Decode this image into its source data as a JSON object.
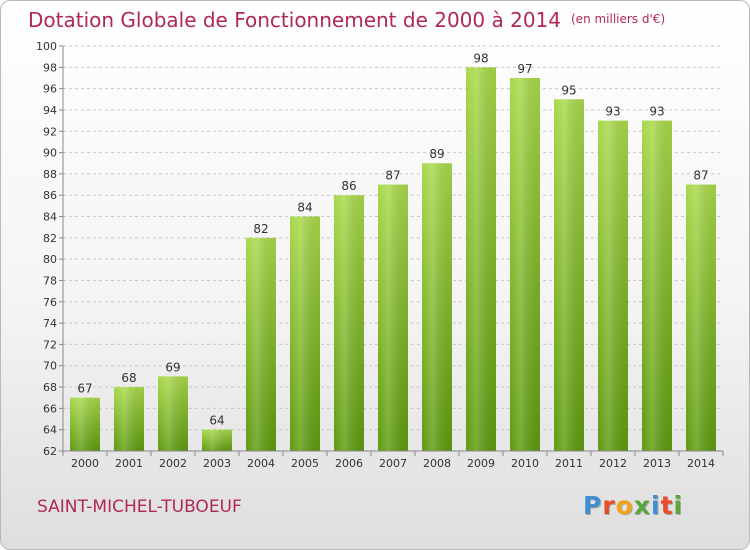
{
  "title": "Dotation Globale de Fonctionnement de 2000 à 2014",
  "subtitle": "(en milliers d'€)",
  "commune": "SAINT-MICHEL-TUBOEUF",
  "logo": {
    "text": "Proxiti",
    "letters": [
      {
        "char": "P",
        "color": "#3f8fd0"
      },
      {
        "char": "r",
        "color": "#e84b2a"
      },
      {
        "char": "o",
        "color": "#f2a21b"
      },
      {
        "char": "x",
        "color": "#5aa63c"
      },
      {
        "char": "i",
        "color": "#3f8fd0"
      },
      {
        "char": "t",
        "color": "#e84b2a"
      },
      {
        "char": "i",
        "color": "#5aa63c"
      }
    ]
  },
  "colors": {
    "accent": "#b0285a",
    "bar_light": "#a8d84a",
    "bar_dark": "#5e9a0f",
    "grid": "#c8c8c8",
    "axis_text": "#333333"
  },
  "chart_data": {
    "type": "bar",
    "title": "Dotation Globale de Fonctionnement de 2000 à 2014",
    "subtitle": "(en milliers d'€)",
    "categories": [
      "2000",
      "2001",
      "2002",
      "2003",
      "2004",
      "2005",
      "2006",
      "2007",
      "2008",
      "2009",
      "2010",
      "2011",
      "2012",
      "2013",
      "2014"
    ],
    "values": [
      67,
      68,
      69,
      64,
      82,
      84,
      86,
      87,
      89,
      98,
      97,
      95,
      93,
      93,
      87
    ],
    "ylim": [
      62,
      100
    ],
    "yticks": [
      62,
      64,
      66,
      68,
      70,
      72,
      74,
      76,
      78,
      80,
      82,
      84,
      86,
      88,
      90,
      92,
      94,
      96,
      98,
      100
    ],
    "grid": true,
    "data_labels": true
  }
}
